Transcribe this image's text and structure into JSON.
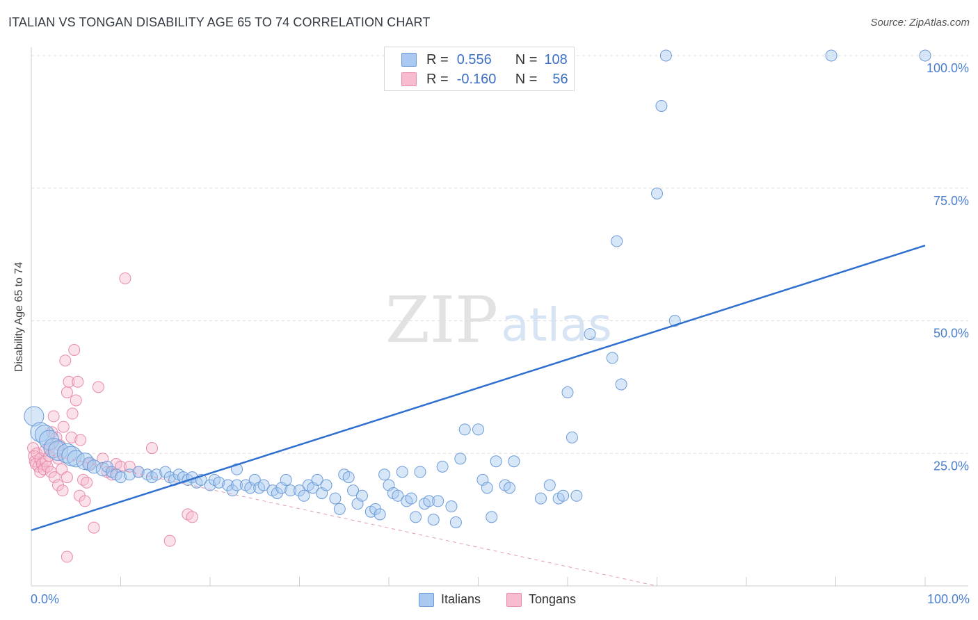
{
  "title": "ITALIAN VS TONGAN DISABILITY AGE 65 TO 74 CORRELATION CHART",
  "source": "Source: ZipAtlas.com",
  "watermark": {
    "zip": "ZIP",
    "atlas": "atlas"
  },
  "legend": {
    "r_label": "R =",
    "n_label": "N =",
    "italians": {
      "r": "0.556",
      "n": "108"
    },
    "tongans": {
      "r": "-0.160",
      "n": "56"
    }
  },
  "bottom_legend": {
    "italians": "Italians",
    "tongans": "Tongans"
  },
  "x_axis": {
    "min_label": "0.0%",
    "max_label": "100.0%"
  },
  "y_axis_labels": [
    "25.0%",
    "50.0%",
    "75.0%",
    "100.0%"
  ],
  "colors": {
    "italians_fill": "#a9c9f0",
    "italians_stroke": "#6b9bd8",
    "italians_line": "#2e6fd0",
    "tongans_fill": "#f7bcd0",
    "tongans_stroke": "#e88aab",
    "tongans_line": "#e29ab2",
    "grid": "#dddddd",
    "axis_text": "#4a7fcf"
  },
  "chart_data": {
    "type": "scatter",
    "title": "ITALIAN VS TONGAN DISABILITY AGE 65 TO 74 CORRELATION CHART",
    "xlabel": "",
    "ylabel": "Disability Age 65 to 74",
    "xlim": [
      0,
      100
    ],
    "ylim": [
      0,
      100
    ],
    "yticks": [
      25,
      50,
      75,
      100
    ],
    "series": [
      {
        "name": "Italians",
        "r": 0.556,
        "n": 108,
        "trend": {
          "x": [
            0,
            100
          ],
          "y": [
            10.5,
            64.2
          ]
        },
        "points": [
          [
            0.3,
            32,
            3
          ],
          [
            1,
            29,
            3
          ],
          [
            1.5,
            28.5,
            2.5
          ],
          [
            2,
            27.5,
            2
          ],
          [
            2.5,
            26,
            2
          ],
          [
            3,
            25.5,
            2.5
          ],
          [
            4,
            25,
            2
          ],
          [
            4.5,
            24.5,
            2
          ],
          [
            5,
            24,
            1.5
          ],
          [
            6,
            23.5,
            1.5
          ],
          [
            6.5,
            23,
            1.2
          ],
          [
            7,
            22.5,
            1.2
          ],
          [
            8,
            22,
            1.2
          ],
          [
            8.5,
            22.5,
            1
          ],
          [
            9,
            21.5,
            1
          ],
          [
            9.5,
            21,
            1
          ],
          [
            10,
            20.5,
            1
          ],
          [
            11,
            21,
            1
          ],
          [
            12,
            21.5,
            1
          ],
          [
            13,
            21,
            1
          ],
          [
            13.5,
            20.5,
            1
          ],
          [
            14,
            21,
            1
          ],
          [
            15,
            21.5,
            1
          ],
          [
            15.5,
            20.5,
            1
          ],
          [
            16,
            20,
            1
          ],
          [
            16.5,
            21,
            1
          ],
          [
            17,
            20.5,
            1
          ],
          [
            17.5,
            20,
            1
          ],
          [
            18,
            20.5,
            1
          ],
          [
            18.5,
            19.5,
            1
          ],
          [
            19,
            20,
            1
          ],
          [
            20,
            19,
            1
          ],
          [
            20.5,
            20,
            1
          ],
          [
            21,
            19.5,
            1
          ],
          [
            22,
            19,
            1
          ],
          [
            22.5,
            18,
            1
          ],
          [
            23,
            19,
            1
          ],
          [
            24,
            19,
            1
          ],
          [
            24.5,
            18.5,
            1
          ],
          [
            25,
            20,
            1
          ],
          [
            25.5,
            18.5,
            1
          ],
          [
            26,
            19,
            1
          ],
          [
            27,
            18,
            1
          ],
          [
            27.5,
            17.5,
            1
          ],
          [
            28,
            18.5,
            1
          ],
          [
            28.5,
            20,
            1
          ],
          [
            29,
            18,
            1
          ],
          [
            30,
            18,
            1
          ],
          [
            30.5,
            17,
            1
          ],
          [
            31,
            19,
            1
          ],
          [
            31.5,
            18.5,
            1
          ],
          [
            32,
            20,
            1
          ],
          [
            32.5,
            17.5,
            1
          ],
          [
            33,
            19,
            1
          ],
          [
            34,
            16.5,
            1
          ],
          [
            34.5,
            14.5,
            1
          ],
          [
            35,
            21,
            1
          ],
          [
            35.5,
            20.5,
            1
          ],
          [
            36,
            18,
            1
          ],
          [
            36.5,
            15.5,
            1
          ],
          [
            37,
            17,
            1
          ],
          [
            38,
            14,
            1
          ],
          [
            38.5,
            14.5,
            1
          ],
          [
            39,
            13.5,
            1
          ],
          [
            39.5,
            21,
            1
          ],
          [
            40,
            19,
            1
          ],
          [
            40.5,
            17.5,
            1
          ],
          [
            41,
            17,
            1
          ],
          [
            41.5,
            21.5,
            1
          ],
          [
            42,
            16,
            1
          ],
          [
            42.5,
            16.5,
            1
          ],
          [
            43,
            13,
            1
          ],
          [
            43.5,
            21.5,
            1
          ],
          [
            44,
            15.5,
            1
          ],
          [
            44.5,
            16,
            1
          ],
          [
            45,
            12.5,
            1
          ],
          [
            45.5,
            16,
            1
          ],
          [
            46,
            22.5,
            1
          ],
          [
            47,
            15,
            1
          ],
          [
            47.5,
            12,
            1
          ],
          [
            48,
            24,
            1
          ],
          [
            48.5,
            29.5,
            1
          ],
          [
            50,
            29.5,
            1
          ],
          [
            50.5,
            20,
            1
          ],
          [
            51,
            18.5,
            1
          ],
          [
            51.5,
            13,
            1
          ],
          [
            52,
            23.5,
            1
          ],
          [
            53,
            19,
            1
          ],
          [
            53.5,
            18.5,
            1
          ],
          [
            54,
            23.5,
            1
          ],
          [
            57,
            16.5,
            1
          ],
          [
            58,
            19,
            1
          ],
          [
            59,
            16.5,
            1
          ],
          [
            59.5,
            17,
            1
          ],
          [
            60,
            36.5,
            1
          ],
          [
            60.5,
            28,
            1
          ],
          [
            61,
            17,
            1
          ],
          [
            62.5,
            47.5,
            1
          ],
          [
            65,
            43,
            1
          ],
          [
            65.5,
            65,
            1
          ],
          [
            66,
            38,
            1
          ],
          [
            70,
            74,
            1
          ],
          [
            70.5,
            90.5,
            1
          ],
          [
            71,
            100,
            1
          ],
          [
            72,
            50,
            1
          ],
          [
            89.5,
            100,
            1
          ],
          [
            100,
            100,
            1
          ],
          [
            23,
            22,
            1
          ]
        ]
      },
      {
        "name": "Tongans",
        "r": -0.16,
        "n": 56,
        "trend": {
          "x": [
            0,
            70
          ],
          "y": [
            25.5,
            0
          ]
        },
        "points": [
          [
            0.2,
            26
          ],
          [
            0.3,
            24.5
          ],
          [
            0.4,
            23.5
          ],
          [
            0.5,
            23
          ],
          [
            0.6,
            25
          ],
          [
            0.8,
            22.5
          ],
          [
            1,
            24
          ],
          [
            1,
            21.5
          ],
          [
            1.2,
            23
          ],
          [
            1.4,
            22
          ],
          [
            1.5,
            25.5
          ],
          [
            1.6,
            23.5
          ],
          [
            1.8,
            22.5
          ],
          [
            2,
            26
          ],
          [
            2,
            24.5
          ],
          [
            2.2,
            21.5
          ],
          [
            2.3,
            29
          ],
          [
            2.5,
            32
          ],
          [
            2.6,
            20.5
          ],
          [
            2.8,
            28
          ],
          [
            3,
            19
          ],
          [
            3,
            24
          ],
          [
            3.2,
            26.5
          ],
          [
            3.4,
            22
          ],
          [
            3.5,
            18
          ],
          [
            3.6,
            30
          ],
          [
            3.8,
            42.5
          ],
          [
            4,
            20.5
          ],
          [
            4,
            36.5
          ],
          [
            4.2,
            38.5
          ],
          [
            4.5,
            28
          ],
          [
            4.6,
            32.5
          ],
          [
            4.8,
            44.5
          ],
          [
            5,
            35
          ],
          [
            5.2,
            38.5
          ],
          [
            5.4,
            17
          ],
          [
            5.5,
            27.5
          ],
          [
            5.8,
            20
          ],
          [
            6,
            16
          ],
          [
            6.2,
            19.5
          ],
          [
            6.5,
            23
          ],
          [
            7,
            11
          ],
          [
            7.5,
            37.5
          ],
          [
            8,
            24
          ],
          [
            8.5,
            21.5
          ],
          [
            9,
            21
          ],
          [
            9.5,
            23
          ],
          [
            10,
            22.5
          ],
          [
            10.5,
            58
          ],
          [
            11,
            22.5
          ],
          [
            12,
            21.5
          ],
          [
            13.5,
            26
          ],
          [
            15.5,
            8.5
          ],
          [
            17.5,
            13.5
          ],
          [
            18,
            13
          ],
          [
            4,
            5.5
          ]
        ]
      }
    ]
  }
}
